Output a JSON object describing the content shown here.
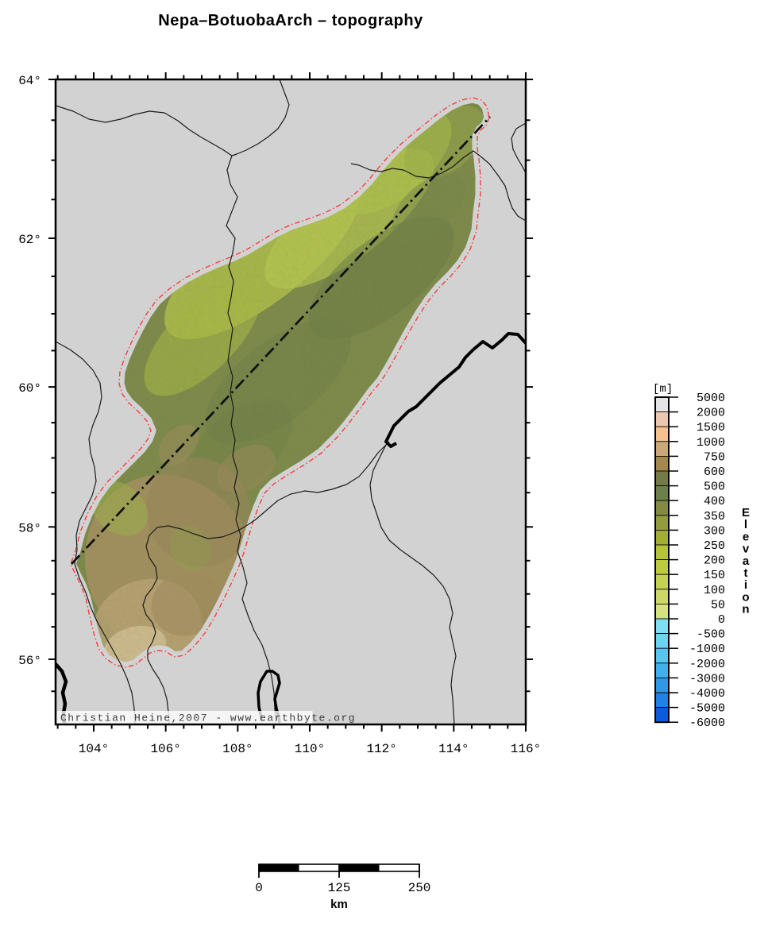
{
  "title": "Nepa–BotuobaArch – topography",
  "map": {
    "background_color": "#d2d2d2",
    "copyright": "Christian Heine,2007 - www.earthbyte.org",
    "region_outline_color": "#fa3c3c",
    "x_axis": {
      "major_ticks": [
        {
          "value": 104,
          "label": "104°"
        },
        {
          "value": 106,
          "label": "106°"
        },
        {
          "value": 108,
          "label": "108°"
        },
        {
          "value": 110,
          "label": "110°"
        },
        {
          "value": 112,
          "label": "112°"
        },
        {
          "value": 114,
          "label": "114°"
        },
        {
          "value": 116,
          "label": "116°"
        }
      ],
      "minor_step": 0.5,
      "range": [
        103.0,
        116.0
      ]
    },
    "y_axis": {
      "major_ticks": [
        {
          "value": 64,
          "label": "64°"
        },
        {
          "value": 62,
          "label": "62°"
        },
        {
          "value": 60,
          "label": "60°"
        },
        {
          "value": 58,
          "label": "58°"
        },
        {
          "value": 56,
          "label": "56°"
        }
      ],
      "minor_step": 0.5,
      "range": [
        55.5,
        64.0
      ]
    }
  },
  "colorbar": {
    "unit_label": "[m]",
    "axis_label": "Elevation",
    "boundary_labels": [
      "5000",
      "2000",
      "1500",
      "1000",
      "750",
      "600",
      "500",
      "400",
      "350",
      "300",
      "250",
      "200",
      "150",
      "100",
      "50",
      "0",
      "-500",
      "-1000",
      "-2000",
      "-3000",
      "-4000",
      "-5000",
      "-6000"
    ],
    "cell_colors": [
      "#e4e4e4",
      "#eac7ae",
      "#f3c28e",
      "#cba87a",
      "#a3894f",
      "#757b47",
      "#6d7f4a",
      "#838b43",
      "#929c3c",
      "#a3ae35",
      "#b4c434",
      "#bccb40",
      "#c3d251",
      "#cbd866",
      "#d6e181",
      "#7fdef3",
      "#6cd4f1",
      "#56c6ef",
      "#41b0ec",
      "#2f99e8",
      "#1f82e4",
      "#0b5bdd"
    ]
  },
  "scale_bar": {
    "tick_labels": [
      "0",
      "125",
      "250"
    ],
    "unit": "km"
  }
}
